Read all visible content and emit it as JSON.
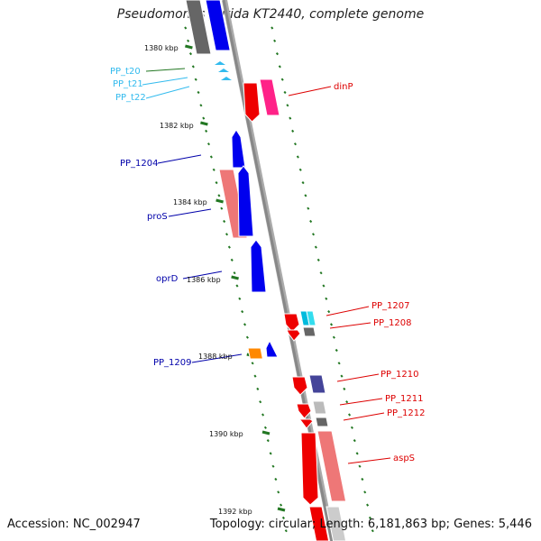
{
  "header": {
    "title": "Pseudomonas putida KT2440, complete genome"
  },
  "footer": {
    "accession": "Accession: NC_002947",
    "summary": "Topology: circular; Length: 6,181,863 bp; Genes: 5,446"
  },
  "ticks": [
    {
      "label": "1380 kbp"
    },
    {
      "label": "1382 kbp"
    },
    {
      "label": "1384 kbp"
    },
    {
      "label": "1386 kbp"
    },
    {
      "label": "1388 kbp"
    },
    {
      "label": "1390 kbp"
    },
    {
      "label": "1392 kbp"
    }
  ],
  "genes": [
    {
      "label": "PP_t20",
      "color": "#33bbee"
    },
    {
      "label": "PP_t21",
      "color": "#33bbee"
    },
    {
      "label": "PP_t22",
      "color": "#33bbee"
    },
    {
      "label": "dinP",
      "color": "#dd0000"
    },
    {
      "label": "PP_1204",
      "color": "#0000aa"
    },
    {
      "label": "proS",
      "color": "#0000aa"
    },
    {
      "label": "oprD",
      "color": "#0000aa"
    },
    {
      "label": "PP_1207",
      "color": "#dd0000"
    },
    {
      "label": "PP_1208",
      "color": "#dd0000"
    },
    {
      "label": "PP_1209",
      "color": "#0000aa"
    },
    {
      "label": "PP_1210",
      "color": "#dd0000"
    },
    {
      "label": "PP_1211",
      "color": "#dd0000"
    },
    {
      "label": "PP_1212",
      "color": "#dd0000"
    },
    {
      "label": "aspS",
      "color": "#dd0000"
    }
  ],
  "colors": {
    "backbone": "#888888",
    "tick": "#227722",
    "forward_strand": "#0000ff",
    "reverse_strand": "#ff0000"
  }
}
